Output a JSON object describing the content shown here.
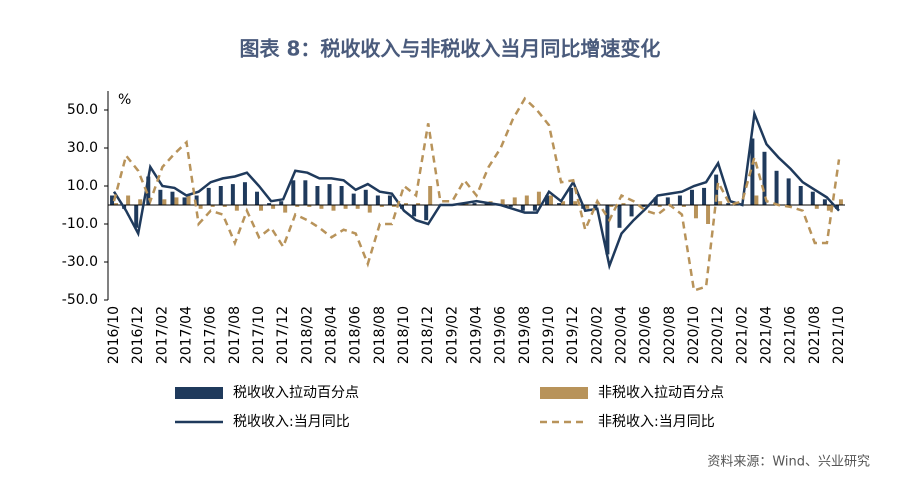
{
  "chart_data": {
    "type": "bar_line",
    "title": "图表 8：税收收入与非税收入当月同比增速变化",
    "y_unit": "%",
    "source": "资料来源：Wind、兴业研究",
    "categories": [
      "2016/10",
      null,
      "2016/12",
      null,
      "2017/02",
      null,
      "2017/04",
      null,
      "2017/06",
      null,
      "2017/08",
      null,
      "2017/10",
      null,
      "2017/12",
      null,
      "2018/02",
      null,
      "2018/04",
      null,
      "2018/06",
      null,
      "2018/08",
      null,
      "2018/10",
      null,
      "2018/12",
      null,
      "2019/02",
      null,
      "2019/04",
      null,
      "2019/06",
      null,
      "2019/08",
      null,
      "2019/10",
      null,
      "2019/12",
      null,
      "2020/02",
      null,
      "2020/04",
      null,
      "2020/06",
      null,
      "2020/08",
      null,
      "2020/10",
      null,
      "2020/12",
      null,
      "2021/02",
      null,
      "2021/04",
      null,
      "2021/06",
      null,
      "2021/08",
      null,
      "2021/10"
    ],
    "series": [
      {
        "name": "税收收入拉动百分点",
        "kind": "bar",
        "color": "#1f3a5c",
        "values": [
          5,
          -2,
          -12,
          15,
          8,
          7,
          4,
          5,
          9,
          10,
          11,
          12,
          7,
          1,
          2,
          13,
          13,
          10,
          11,
          10,
          6,
          8,
          5,
          5,
          -2,
          -6,
          -8,
          0,
          0,
          1,
          1,
          1,
          0,
          -1,
          -3,
          -3,
          5,
          1,
          9,
          -2,
          -2,
          -26,
          -12,
          -6,
          -1,
          4,
          4,
          5,
          8,
          9,
          16,
          1,
          0,
          35,
          28,
          18,
          14,
          10,
          7,
          3,
          -2
        ]
      },
      {
        "name": "非税收入拉动百分点",
        "kind": "bar",
        "color": "#b8935a",
        "values": [
          1,
          5,
          3,
          0,
          3,
          4,
          5,
          -2,
          -1,
          -1,
          -3,
          0,
          -3,
          -2,
          -4,
          -1,
          -1,
          -2,
          -3,
          -2,
          -2,
          -4,
          -1,
          -1,
          1,
          1,
          10,
          0,
          0,
          1,
          0,
          2,
          3,
          4,
          5,
          7,
          5,
          2,
          2,
          -2,
          0,
          -1,
          1,
          0,
          -1,
          -1,
          0,
          -1,
          -7,
          -10,
          2,
          0,
          0,
          5,
          0,
          0,
          0,
          0,
          -2,
          -3,
          3
        ]
      },
      {
        "name": "税收收入:当月同比",
        "kind": "line",
        "color": "#1f3a5c",
        "values": [
          7,
          -3,
          -15,
          20,
          10,
          9,
          5,
          7,
          12,
          14,
          15,
          17,
          10,
          2,
          3,
          18,
          17,
          14,
          14,
          13,
          8,
          11,
          7,
          6,
          -3,
          -8,
          -10,
          0,
          0,
          1,
          2,
          1,
          0,
          -2,
          -4,
          -4,
          7,
          2,
          12,
          -3,
          -2,
          -32,
          -15,
          -8,
          -2,
          5,
          6,
          7,
          10,
          12,
          22,
          2,
          0,
          48,
          32,
          25,
          19,
          12,
          8,
          4,
          -3
        ]
      },
      {
        "name": "非税收入:当月同比",
        "kind": "line",
        "dashed": true,
        "color": "#b8935a",
        "values": [
          2,
          26,
          18,
          2,
          20,
          27,
          33,
          -10,
          -3,
          -5,
          -20,
          -3,
          -17,
          -12,
          -22,
          -5,
          -8,
          -12,
          -17,
          -13,
          -15,
          -31,
          -10,
          -10,
          10,
          5,
          43,
          2,
          2,
          13,
          5,
          20,
          30,
          45,
          56,
          50,
          42,
          12,
          13,
          -13,
          2,
          -8,
          5,
          2,
          -3,
          -5,
          0,
          -5,
          -45,
          -43,
          12,
          0,
          2,
          25,
          2,
          0,
          -1,
          -3,
          -20,
          -20,
          24
        ]
      }
    ],
    "ylim": [
      -50,
      60
    ],
    "yticks": [
      {
        "value": 50,
        "label": "50.0"
      },
      {
        "value": 30,
        "label": "30.0"
      },
      {
        "value": 10,
        "label": "10.0"
      },
      {
        "value": -10,
        "label": "-10.0"
      },
      {
        "value": -30,
        "label": "-30.0"
      },
      {
        "value": -50,
        "label": "-50.0"
      }
    ],
    "grid": false
  }
}
